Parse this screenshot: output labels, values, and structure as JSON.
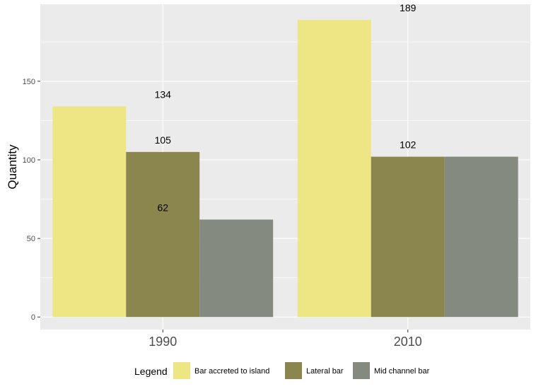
{
  "chart_data": {
    "type": "bar",
    "categories": [
      "1990",
      "2010"
    ],
    "series": [
      {
        "name": "Bar accreted to island",
        "values": [
          134,
          189
        ],
        "color": "#eee585"
      },
      {
        "name": "Lateral bar",
        "values": [
          105,
          102
        ],
        "color": "#8b864e"
      },
      {
        "name": "Mid channel bar",
        "values": [
          62,
          102
        ],
        "color": "#858a80"
      }
    ],
    "labels": [
      {
        "text": "134",
        "x_category": "1990",
        "y": 134
      },
      {
        "text": "105",
        "x_category": "1990",
        "y": 105
      },
      {
        "text": "62",
        "x_category": "1990",
        "y": 62
      },
      {
        "text": "189",
        "x_category": "2010",
        "y": 189
      },
      {
        "text": "102",
        "x_category": "2010",
        "y": 102
      }
    ],
    "ylabel": "Quantity",
    "xlabel": "",
    "ylim": [
      -8,
      199
    ],
    "yticks": [
      0,
      50,
      100,
      150
    ],
    "grid": true,
    "legend_title": "Legend",
    "legend_position": "bottom",
    "panel_color": "#ebebeb",
    "grid_color": "#ffffff"
  }
}
